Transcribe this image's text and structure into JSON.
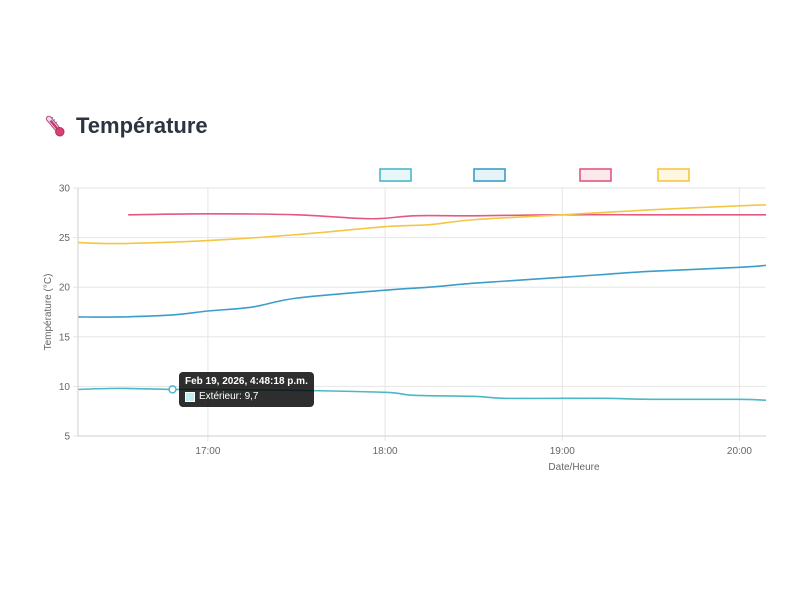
{
  "header": {
    "title": "Température",
    "icon": "thermometer-icon"
  },
  "tooltip": {
    "title": "Feb 19, 2026, 4:48:18 p.m.",
    "series_label": "Extérieur: 9,7",
    "swatch_color": "#bdeff0"
  },
  "chart_data": {
    "type": "line",
    "title": "",
    "xlabel": "Date/Heure",
    "ylabel": "Température (°C)",
    "ylim": [
      5,
      30
    ],
    "yticks": [
      5,
      10,
      15,
      20,
      25,
      30
    ],
    "xlim": [
      "16:16",
      "20:09"
    ],
    "xticks": [
      "17:00",
      "18:00",
      "19:00",
      "20:00"
    ],
    "grid": true,
    "legend": "top",
    "series": [
      {
        "color": "#4bb8c8",
        "fill": "#e8f7f8",
        "x": [
          "16:16",
          "16:30",
          "16:48",
          "17:00",
          "17:30",
          "18:00",
          "18:10",
          "18:30",
          "18:40",
          "19:00",
          "19:15",
          "19:30",
          "20:00",
          "20:09"
        ],
        "y": [
          9.7,
          9.8,
          9.7,
          9.7,
          9.6,
          9.4,
          9.1,
          9.0,
          8.8,
          8.8,
          8.8,
          8.7,
          8.7,
          8.6
        ]
      },
      {
        "color": "#3d9dc9",
        "fill": "#e6f3f9",
        "x": [
          "16:16",
          "16:30",
          "16:48",
          "17:00",
          "17:15",
          "17:30",
          "18:00",
          "18:15",
          "18:30",
          "18:40",
          "19:00",
          "19:15",
          "19:30",
          "20:00",
          "20:09"
        ],
        "y": [
          17.0,
          17.0,
          17.2,
          17.6,
          18.0,
          18.9,
          19.7,
          20.0,
          20.4,
          20.6,
          21.0,
          21.3,
          21.6,
          22.0,
          22.2
        ]
      },
      {
        "color": "#e5587f",
        "fill": "#fbe9ee",
        "x": [
          "16:33",
          "17:00",
          "17:30",
          "17:55",
          "18:10",
          "18:30",
          "19:00",
          "19:30",
          "20:00",
          "20:09"
        ],
        "y": [
          27.3,
          27.4,
          27.3,
          26.9,
          27.2,
          27.2,
          27.3,
          27.3,
          27.3,
          27.3
        ]
      },
      {
        "color": "#f5c644",
        "fill": "#fdf6e0",
        "x": [
          "16:16",
          "16:30",
          "17:00",
          "17:30",
          "18:00",
          "18:15",
          "18:30",
          "19:00",
          "19:30",
          "20:00",
          "20:09"
        ],
        "y": [
          24.5,
          24.4,
          24.7,
          25.3,
          26.1,
          26.3,
          26.8,
          27.3,
          27.8,
          28.2,
          28.3
        ]
      }
    ]
  }
}
